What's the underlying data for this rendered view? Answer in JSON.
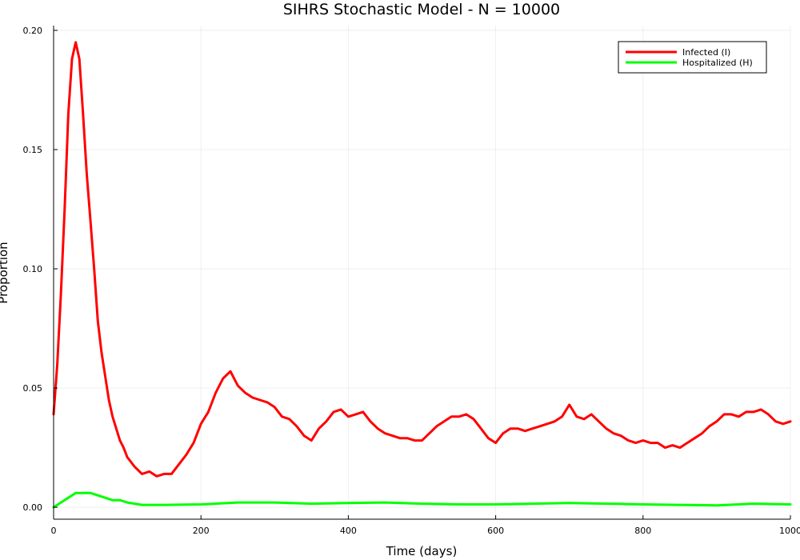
{
  "chart_data": {
    "type": "line",
    "title": "SIHRS Stochastic Model - N = 10000",
    "xlabel": "Time (days)",
    "ylabel": "Proportion",
    "xlim": [
      0,
      1000
    ],
    "ylim": [
      -0.005,
      0.202
    ],
    "xticks": [
      0,
      200,
      400,
      600,
      800,
      1000
    ],
    "xtick_labels": [
      "0",
      "200",
      "400",
      "600",
      "800",
      "1000"
    ],
    "yticks": [
      0.0,
      0.05,
      0.1,
      0.15,
      0.2
    ],
    "ytick_labels": [
      "0.00",
      "0.05",
      "0.10",
      "0.15",
      "0.20"
    ],
    "grid": true,
    "legend_position": "top-right",
    "series": [
      {
        "name": "Infected (I)",
        "color": "#ff0000",
        "x": [
          0,
          5,
          10,
          15,
          20,
          25,
          30,
          35,
          40,
          45,
          50,
          55,
          60,
          65,
          70,
          75,
          80,
          85,
          90,
          95,
          100,
          110,
          120,
          130,
          140,
          150,
          160,
          170,
          180,
          190,
          200,
          210,
          220,
          230,
          240,
          250,
          260,
          270,
          280,
          290,
          300,
          310,
          320,
          330,
          340,
          350,
          360,
          370,
          380,
          390,
          400,
          410,
          420,
          430,
          440,
          450,
          460,
          470,
          480,
          490,
          500,
          510,
          520,
          530,
          540,
          550,
          560,
          570,
          580,
          590,
          600,
          610,
          620,
          630,
          640,
          650,
          660,
          670,
          680,
          690,
          700,
          710,
          720,
          730,
          740,
          750,
          760,
          770,
          780,
          790,
          800,
          810,
          820,
          830,
          840,
          850,
          860,
          870,
          880,
          890,
          900,
          910,
          920,
          930,
          940,
          950,
          960,
          970,
          980,
          990,
          1000
        ],
        "values": [
          0.039,
          0.06,
          0.09,
          0.125,
          0.165,
          0.188,
          0.195,
          0.188,
          0.165,
          0.14,
          0.12,
          0.1,
          0.078,
          0.065,
          0.055,
          0.045,
          0.038,
          0.033,
          0.028,
          0.025,
          0.021,
          0.017,
          0.014,
          0.015,
          0.013,
          0.014,
          0.014,
          0.018,
          0.022,
          0.027,
          0.035,
          0.04,
          0.048,
          0.054,
          0.057,
          0.051,
          0.048,
          0.046,
          0.045,
          0.044,
          0.042,
          0.038,
          0.037,
          0.034,
          0.03,
          0.028,
          0.033,
          0.036,
          0.04,
          0.041,
          0.038,
          0.039,
          0.04,
          0.036,
          0.033,
          0.031,
          0.03,
          0.029,
          0.029,
          0.028,
          0.028,
          0.031,
          0.034,
          0.036,
          0.038,
          0.038,
          0.039,
          0.037,
          0.033,
          0.029,
          0.027,
          0.031,
          0.033,
          0.033,
          0.032,
          0.033,
          0.034,
          0.035,
          0.036,
          0.038,
          0.043,
          0.038,
          0.037,
          0.039,
          0.036,
          0.033,
          0.031,
          0.03,
          0.028,
          0.027,
          0.028,
          0.027,
          0.027,
          0.025,
          0.026,
          0.025,
          0.027,
          0.029,
          0.031,
          0.034,
          0.036,
          0.039,
          0.039,
          0.038,
          0.04,
          0.04,
          0.041,
          0.039,
          0.036,
          0.035,
          0.036
        ]
      },
      {
        "name": "Hospitalized (H)",
        "color": "#00ff00",
        "x": [
          0,
          10,
          20,
          30,
          40,
          50,
          60,
          70,
          80,
          90,
          100,
          120,
          150,
          200,
          250,
          300,
          350,
          400,
          450,
          500,
          550,
          600,
          650,
          700,
          750,
          800,
          850,
          900,
          950,
          1000
        ],
        "values": [
          0.0,
          0.002,
          0.004,
          0.006,
          0.006,
          0.006,
          0.005,
          0.004,
          0.003,
          0.003,
          0.002,
          0.001,
          0.001,
          0.0012,
          0.002,
          0.002,
          0.0015,
          0.0018,
          0.002,
          0.0015,
          0.0012,
          0.0012,
          0.0015,
          0.0018,
          0.0015,
          0.0012,
          0.001,
          0.0008,
          0.0015,
          0.0012
        ]
      }
    ]
  }
}
